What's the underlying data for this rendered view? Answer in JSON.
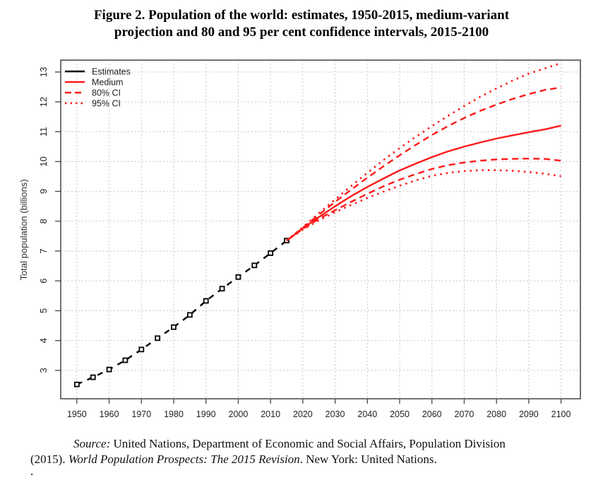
{
  "figure": {
    "title_line1": "Figure 2.  Population of the world: estimates, 1950-2015, medium-variant",
    "title_line2": "projection and 80 and 95 per cent confidence intervals, 2015-2100"
  },
  "source": {
    "label": "Source:",
    "text1": " United Nations, Department of Economic and Social Affairs, Population Division",
    "text2_prefix": "(2015). ",
    "publication": "World Population Prospects: The 2015 Revision",
    "text2_suffix": ". New York: United Nations.",
    "trailing": "."
  },
  "chart_data": {
    "type": "line",
    "title": "Population of the world: estimates, 1950-2015, medium-variant projection and 80 and 95 per cent confidence intervals, 2015-2100",
    "xlabel": "",
    "ylabel": "Total population (billions)",
    "xlim": [
      1945,
      2106
    ],
    "ylim": [
      2.05,
      13.4
    ],
    "grid": true,
    "legend_position": "top-left",
    "x_ticks": [
      1950,
      1960,
      1970,
      1980,
      1990,
      2000,
      2010,
      2020,
      2030,
      2040,
      2050,
      2060,
      2070,
      2080,
      2090,
      2100
    ],
    "y_ticks": [
      3,
      4,
      5,
      6,
      7,
      8,
      9,
      10,
      11,
      12,
      13
    ],
    "colors": {
      "estimates": "#000000",
      "projection": "#ff1a1a"
    },
    "legend": [
      {
        "label": "Estimates",
        "style": "solid",
        "color": "#000000"
      },
      {
        "label": "Medium",
        "style": "solid",
        "color": "#ff1a1a"
      },
      {
        "label": "80% CI",
        "style": "dashed",
        "color": "#ff1a1a"
      },
      {
        "label": "95% CI",
        "style": "dotted",
        "color": "#ff1a1a"
      }
    ],
    "series": [
      {
        "name": "Estimates",
        "style": "dashed-markers",
        "x": [
          1950,
          1955,
          1960,
          1965,
          1970,
          1975,
          1980,
          1985,
          1990,
          1995,
          2000,
          2005,
          2010,
          2015
        ],
        "values": [
          2.53,
          2.77,
          3.03,
          3.34,
          3.7,
          4.08,
          4.45,
          4.86,
          5.33,
          5.74,
          6.13,
          6.52,
          6.93,
          7.35
        ]
      },
      {
        "name": "Medium",
        "style": "solid",
        "x": [
          2015,
          2020,
          2025,
          2030,
          2035,
          2040,
          2045,
          2050,
          2055,
          2060,
          2065,
          2070,
          2075,
          2080,
          2085,
          2090,
          2095,
          2100
        ],
        "values": [
          7.35,
          7.76,
          8.14,
          8.5,
          8.84,
          9.15,
          9.43,
          9.7,
          9.93,
          10.15,
          10.34,
          10.5,
          10.64,
          10.77,
          10.88,
          10.98,
          11.08,
          11.2
        ]
      },
      {
        "name": "80% CI upper",
        "style": "dashed",
        "x": [
          2015,
          2020,
          2025,
          2030,
          2035,
          2040,
          2045,
          2050,
          2055,
          2060,
          2065,
          2070,
          2075,
          2080,
          2085,
          2090,
          2095,
          2100
        ],
        "values": [
          7.35,
          7.78,
          8.22,
          8.65,
          9.06,
          9.46,
          9.84,
          10.21,
          10.56,
          10.89,
          11.19,
          11.46,
          11.7,
          11.91,
          12.1,
          12.26,
          12.4,
          12.48
        ]
      },
      {
        "name": "80% CI lower",
        "style": "dashed",
        "x": [
          2015,
          2020,
          2025,
          2030,
          2035,
          2040,
          2045,
          2050,
          2055,
          2060,
          2065,
          2070,
          2075,
          2080,
          2085,
          2090,
          2095,
          2100
        ],
        "values": [
          7.35,
          7.74,
          8.08,
          8.37,
          8.65,
          8.92,
          9.17,
          9.39,
          9.58,
          9.75,
          9.88,
          9.97,
          10.03,
          10.07,
          10.09,
          10.1,
          10.09,
          10.03
        ]
      },
      {
        "name": "95% CI upper",
        "style": "dotted",
        "x": [
          2015,
          2020,
          2025,
          2030,
          2035,
          2040,
          2045,
          2050,
          2055,
          2060,
          2065,
          2070,
          2075,
          2080,
          2085,
          2090,
          2095,
          2100
        ],
        "values": [
          7.35,
          7.8,
          8.27,
          8.73,
          9.18,
          9.62,
          10.05,
          10.45,
          10.83,
          11.19,
          11.53,
          11.86,
          12.17,
          12.45,
          12.71,
          12.95,
          13.12,
          13.3
        ]
      },
      {
        "name": "95% CI lower",
        "style": "dotted",
        "x": [
          2015,
          2020,
          2025,
          2030,
          2035,
          2040,
          2045,
          2050,
          2055,
          2060,
          2065,
          2070,
          2075,
          2080,
          2085,
          2090,
          2095,
          2100
        ],
        "values": [
          7.35,
          7.72,
          8.03,
          8.3,
          8.55,
          8.78,
          8.99,
          9.19,
          9.37,
          9.52,
          9.62,
          9.68,
          9.71,
          9.71,
          9.69,
          9.65,
          9.59,
          9.51
        ]
      }
    ]
  }
}
